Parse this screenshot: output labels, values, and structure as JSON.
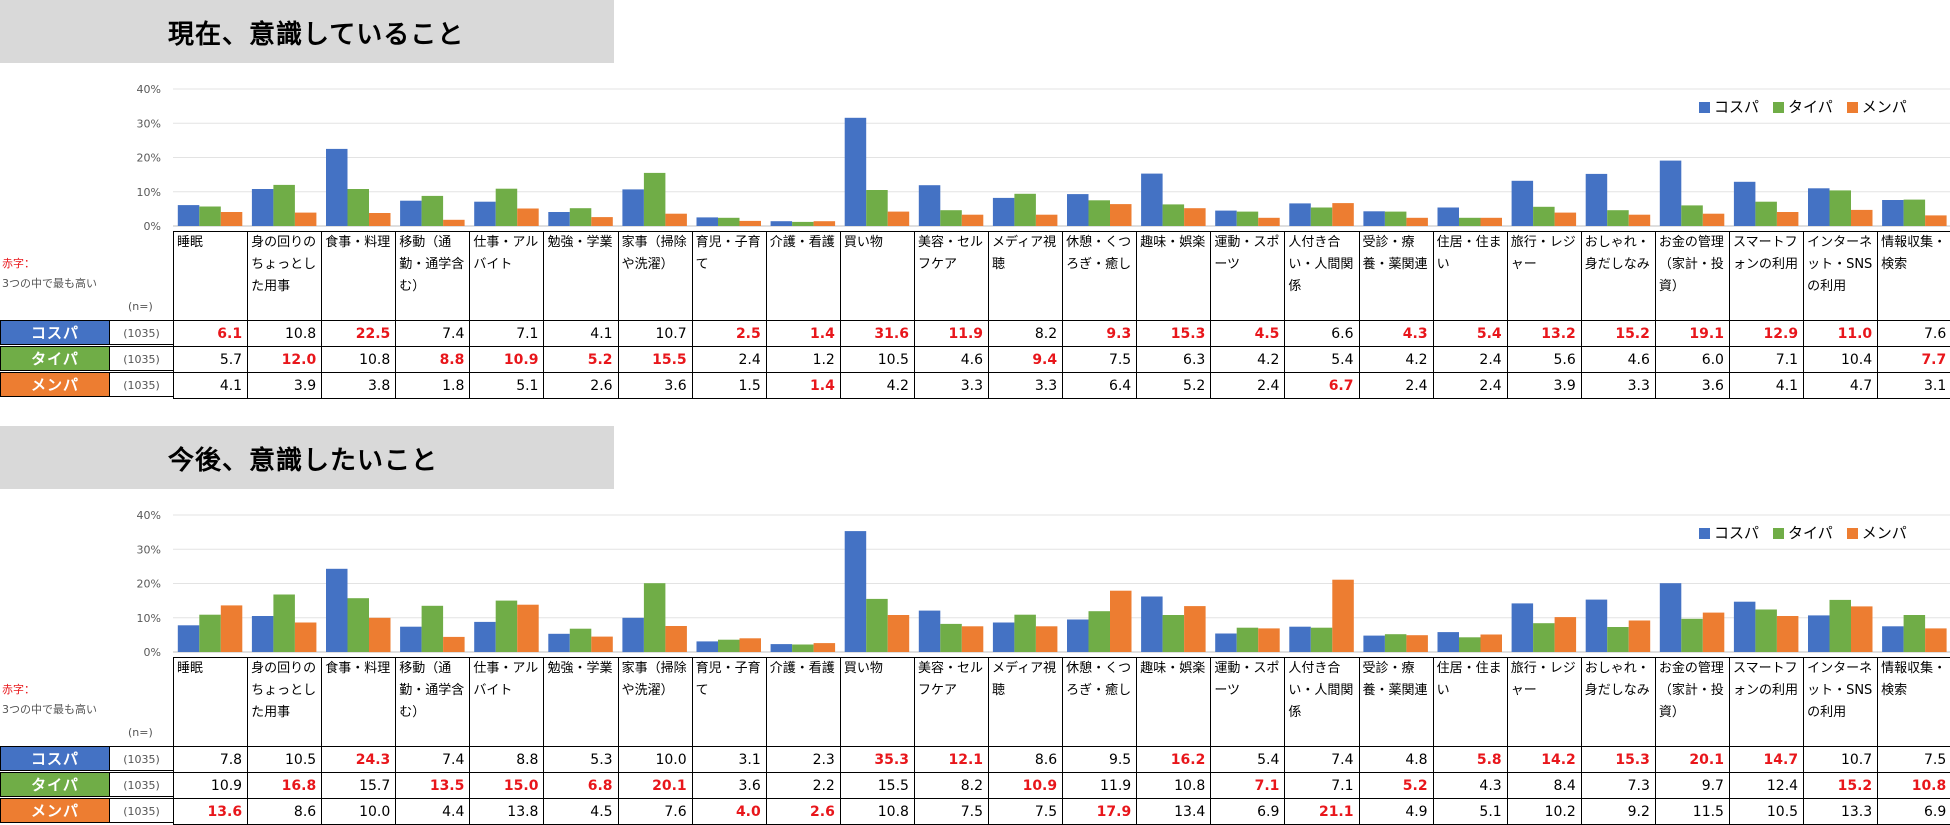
{
  "colors": {
    "cospa": "#4472c4",
    "taipa": "#70ad47",
    "menpa": "#ed7d31",
    "highlight": "#e8161b"
  },
  "legend": [
    "コスパ",
    "タイパ",
    "メンパ"
  ],
  "note": {
    "red": "赤字：",
    "gray": "3つの中で最も高い",
    "n_label": "(n=)",
    "n_value": "(1035)"
  },
  "categories": [
    "睡眠",
    "身の回りのちょっとした用事",
    "食事・料理",
    "移動（通勤・通学含む）",
    "仕事・アルバイト",
    "勉強・学業",
    "家事（掃除や洗濯）",
    "育児・子育て",
    "介護・看護",
    "買い物",
    "美容・セルフケア",
    "メディア視聴",
    "休憩・くつろぎ・癒し",
    "趣味・娯楽",
    "運動・スポーツ",
    "人付き合い・人間関係",
    "受診・療養・薬関連",
    "住居・住まい",
    "旅行・レジャー",
    "おしゃれ・身だしなみ",
    "お金の管理（家計・投資）",
    "スマートフォンの利用",
    "インターネット・SNSの利用",
    "情報収集・検索"
  ],
  "chart_data": [
    {
      "type": "bar",
      "title": "現在、意識していること",
      "ylim": [
        0,
        40
      ],
      "yticks": [
        "0%",
        "10%",
        "20%",
        "30%",
        "40%"
      ],
      "series": [
        {
          "name": "コスパ",
          "values": [
            "6.1",
            "10.8",
            "22.5",
            "7.4",
            "7.1",
            "4.1",
            "10.7",
            "2.5",
            "1.4",
            "31.6",
            "11.9",
            "8.2",
            "9.3",
            "15.3",
            "4.5",
            "6.6",
            "4.3",
            "5.4",
            "13.2",
            "15.2",
            "19.1",
            "12.9",
            "11.0",
            "7.6"
          ],
          "highlight": [
            true,
            false,
            true,
            false,
            false,
            false,
            false,
            true,
            true,
            true,
            true,
            false,
            true,
            true,
            true,
            false,
            true,
            true,
            true,
            true,
            true,
            true,
            true,
            false
          ]
        },
        {
          "name": "タイパ",
          "values": [
            "5.7",
            "12.0",
            "10.8",
            "8.8",
            "10.9",
            "5.2",
            "15.5",
            "2.4",
            "1.2",
            "10.5",
            "4.6",
            "9.4",
            "7.5",
            "6.3",
            "4.2",
            "5.4",
            "4.2",
            "2.4",
            "5.6",
            "4.6",
            "6.0",
            "7.1",
            "10.4",
            "7.7"
          ],
          "highlight": [
            false,
            true,
            false,
            true,
            true,
            true,
            true,
            false,
            false,
            false,
            false,
            true,
            false,
            false,
            false,
            false,
            false,
            false,
            false,
            false,
            false,
            false,
            false,
            true
          ]
        },
        {
          "name": "メンパ",
          "values": [
            "4.1",
            "3.9",
            "3.8",
            "1.8",
            "5.1",
            "2.6",
            "3.6",
            "1.5",
            "1.4",
            "4.2",
            "3.3",
            "3.3",
            "6.4",
            "5.2",
            "2.4",
            "6.7",
            "2.4",
            "2.4",
            "3.9",
            "3.3",
            "3.6",
            "4.1",
            "4.7",
            "3.1"
          ],
          "highlight": [
            false,
            false,
            false,
            false,
            false,
            false,
            false,
            false,
            true,
            false,
            false,
            false,
            false,
            false,
            false,
            true,
            false,
            false,
            false,
            false,
            false,
            false,
            false,
            false
          ]
        }
      ]
    },
    {
      "type": "bar",
      "title": "今後、意識したいこと",
      "ylim": [
        0,
        40
      ],
      "yticks": [
        "0%",
        "10%",
        "20%",
        "30%",
        "40%"
      ],
      "series": [
        {
          "name": "コスパ",
          "values": [
            "7.8",
            "10.5",
            "24.3",
            "7.4",
            "8.8",
            "5.3",
            "10.0",
            "3.1",
            "2.3",
            "35.3",
            "12.1",
            "8.6",
            "9.5",
            "16.2",
            "5.4",
            "7.4",
            "4.8",
            "5.8",
            "14.2",
            "15.3",
            "20.1",
            "14.7",
            "10.7",
            "7.5"
          ],
          "highlight": [
            false,
            false,
            true,
            false,
            false,
            false,
            false,
            false,
            false,
            true,
            true,
            false,
            false,
            true,
            false,
            false,
            false,
            true,
            true,
            true,
            true,
            true,
            false,
            false
          ]
        },
        {
          "name": "タイパ",
          "values": [
            "10.9",
            "16.8",
            "15.7",
            "13.5",
            "15.0",
            "6.8",
            "20.1",
            "3.6",
            "2.2",
            "15.5",
            "8.2",
            "10.9",
            "11.9",
            "10.8",
            "7.1",
            "7.1",
            "5.2",
            "4.3",
            "8.4",
            "7.3",
            "9.7",
            "12.4",
            "15.2",
            "10.8"
          ],
          "highlight": [
            false,
            true,
            false,
            true,
            true,
            true,
            true,
            false,
            false,
            false,
            false,
            true,
            false,
            false,
            true,
            false,
            true,
            false,
            false,
            false,
            false,
            false,
            true,
            true
          ]
        },
        {
          "name": "メンパ",
          "values": [
            "13.6",
            "8.6",
            "10.0",
            "4.4",
            "13.8",
            "4.5",
            "7.6",
            "4.0",
            "2.6",
            "10.8",
            "7.5",
            "7.5",
            "17.9",
            "13.4",
            "6.9",
            "21.1",
            "4.9",
            "5.1",
            "10.2",
            "9.2",
            "11.5",
            "10.5",
            "13.3",
            "6.9"
          ],
          "highlight": [
            true,
            false,
            false,
            false,
            false,
            false,
            false,
            true,
            true,
            false,
            false,
            false,
            true,
            false,
            false,
            true,
            false,
            false,
            false,
            false,
            false,
            false,
            false,
            false
          ]
        }
      ]
    }
  ]
}
